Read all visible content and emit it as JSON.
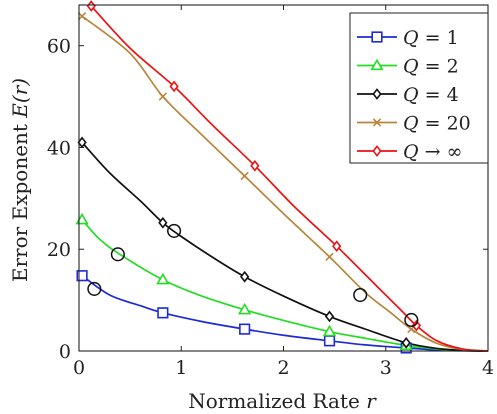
{
  "chart_data": {
    "type": "line",
    "xlabel": "Normalized Rate",
    "xlabel_var": "r",
    "ylabel": "Error Exponent",
    "ylabel_var": "E(r)",
    "xlim": [
      0,
      4
    ],
    "ylim": [
      0,
      68
    ],
    "xticks": [
      0,
      1,
      2,
      3,
      4
    ],
    "yticks": [
      0,
      20,
      40,
      60
    ],
    "legend_position": "top-right",
    "series": [
      {
        "name": "Q = 1",
        "legend_var": "Q",
        "legend_value": "= 1",
        "color": "#1c2bd6",
        "marker": "square",
        "curve": [
          [
            0.03,
            14.8
          ],
          [
            0.3,
            11
          ],
          [
            0.6,
            8.9
          ],
          [
            0.82,
            7.5
          ],
          [
            1.2,
            5.8
          ],
          [
            1.62,
            4.3
          ],
          [
            2.0,
            3.1
          ],
          [
            2.45,
            2.0
          ],
          [
            2.8,
            1.2
          ],
          [
            3.2,
            0.6
          ],
          [
            3.5,
            0.2
          ],
          [
            3.75,
            0.05
          ],
          [
            4.0,
            0
          ]
        ],
        "markers": [
          [
            0.03,
            14.8
          ],
          [
            0.82,
            7.5
          ],
          [
            1.62,
            4.3
          ],
          [
            2.45,
            2.0
          ],
          [
            3.2,
            0.6
          ]
        ],
        "circle": [
          0.15,
          12.2
        ]
      },
      {
        "name": "Q = 2",
        "legend_var": "Q",
        "legend_value": "= 2",
        "color": "#22dd22",
        "marker": "triangle",
        "curve": [
          [
            0.03,
            25.8
          ],
          [
            0.2,
            22
          ],
          [
            0.4,
            19
          ],
          [
            0.82,
            14
          ],
          [
            1.2,
            10.8
          ],
          [
            1.62,
            8.1
          ],
          [
            2.0,
            6.0
          ],
          [
            2.45,
            3.8
          ],
          [
            2.8,
            2.5
          ],
          [
            3.2,
            1.1
          ],
          [
            3.5,
            0.4
          ],
          [
            3.75,
            0.1
          ],
          [
            4.0,
            0
          ]
        ],
        "markers": [
          [
            0.03,
            25.8
          ],
          [
            0.82,
            14
          ],
          [
            1.62,
            8.1
          ],
          [
            2.45,
            3.8
          ],
          [
            3.2,
            1.1
          ]
        ],
        "circle": [
          0.38,
          19
        ]
      },
      {
        "name": "Q = 4",
        "legend_var": "Q",
        "legend_value": "= 4",
        "color": "#111111",
        "marker": "diamond",
        "curve": [
          [
            0.03,
            41
          ],
          [
            0.3,
            35
          ],
          [
            0.6,
            29.5
          ],
          [
            0.82,
            25.2
          ],
          [
            1.0,
            22.5
          ],
          [
            1.3,
            18.5
          ],
          [
            1.62,
            14.6
          ],
          [
            2.0,
            10.8
          ],
          [
            2.45,
            6.8
          ],
          [
            2.8,
            4.3
          ],
          [
            3.2,
            1.6
          ],
          [
            3.5,
            0.5
          ],
          [
            3.8,
            0.08
          ],
          [
            4.0,
            0
          ]
        ],
        "markers": [
          [
            0.03,
            41
          ],
          [
            0.82,
            25.2
          ],
          [
            1.62,
            14.6
          ],
          [
            2.45,
            6.8
          ],
          [
            3.2,
            1.6
          ]
        ],
        "circle": [
          0.93,
          23.6
        ]
      },
      {
        "name": "Q = 20",
        "legend_var": "Q",
        "legend_value": "= 20",
        "color": "#b8853b",
        "marker": "cross",
        "curve": [
          [
            0.03,
            65.8
          ],
          [
            0.5,
            58.5
          ],
          [
            0.82,
            50
          ],
          [
            1.2,
            42.5
          ],
          [
            1.62,
            34.4
          ],
          [
            2.0,
            27
          ],
          [
            2.45,
            18.5
          ],
          [
            2.8,
            11.5
          ],
          [
            3.05,
            7.5
          ],
          [
            3.25,
            4.3
          ],
          [
            3.5,
            1.5
          ],
          [
            3.75,
            0.3
          ],
          [
            4.0,
            0
          ]
        ],
        "markers": [
          [
            0.03,
            65.8
          ],
          [
            0.82,
            50
          ],
          [
            1.62,
            34.4
          ],
          [
            2.45,
            18.5
          ],
          [
            3.25,
            4.3
          ]
        ],
        "circle": [
          2.75,
          11
        ]
      },
      {
        "name": "Q → ∞",
        "legend_var": "Q",
        "legend_value": "→ ∞",
        "color": "#ee1111",
        "marker": "diamond",
        "curve": [
          [
            0.12,
            67.8
          ],
          [
            0.5,
            59.5
          ],
          [
            0.93,
            52
          ],
          [
            1.3,
            44.5
          ],
          [
            1.72,
            36.4
          ],
          [
            2.1,
            28.5
          ],
          [
            2.52,
            20.6
          ],
          [
            2.9,
            13
          ],
          [
            3.15,
            8
          ],
          [
            3.3,
            5
          ],
          [
            3.5,
            2
          ],
          [
            3.75,
            0.4
          ],
          [
            4.0,
            0
          ]
        ],
        "markers": [
          [
            0.12,
            67.8
          ],
          [
            0.93,
            52
          ],
          [
            1.72,
            36.4
          ],
          [
            2.52,
            20.6
          ],
          [
            3.3,
            5
          ]
        ],
        "circle": [
          3.25,
          6.1
        ]
      }
    ]
  }
}
